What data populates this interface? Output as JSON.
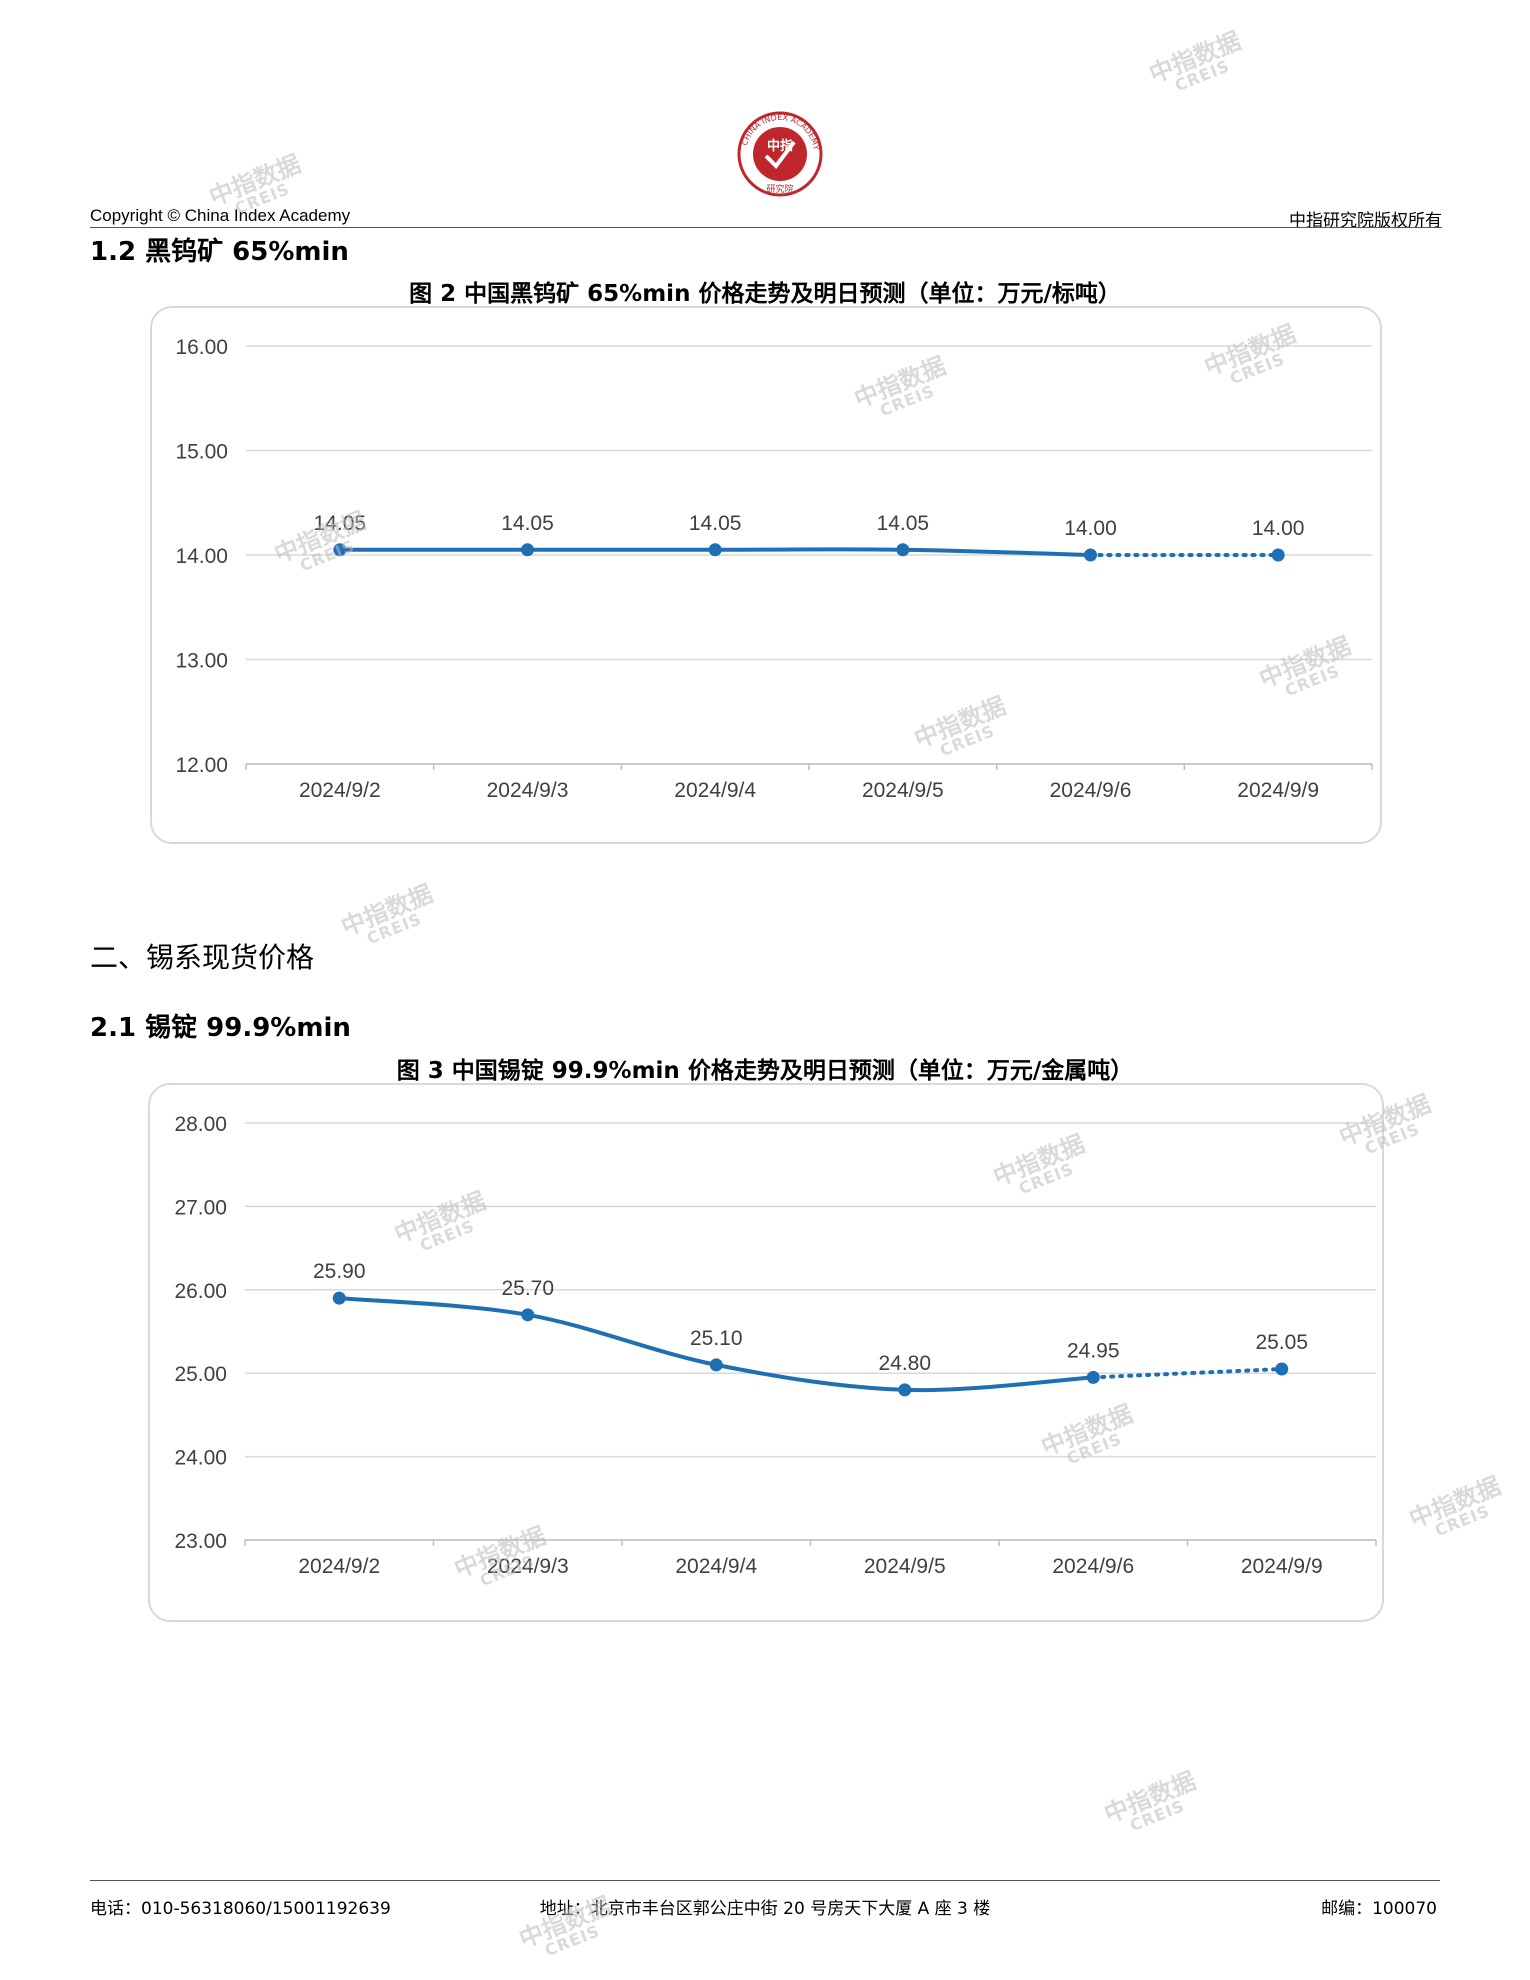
{
  "header": {
    "copyright": "Copyright © China Index Academy",
    "rights": "中指研究院版权所有",
    "logo": {
      "ring_text": "CHINA INDEX ACADEMY",
      "center_text": "中指",
      "bottom_text": "研究院",
      "color": "#c0272d"
    }
  },
  "section_1_2": {
    "heading": "1.2 黑钨矿 65%min"
  },
  "section_2": {
    "heading": "二、锡系现货价格"
  },
  "section_2_1": {
    "heading": "2.1 锡锭 99.9%min"
  },
  "chart1": {
    "title": "图 2 中国黑钨矿 65%min 价格走势及明日预测（单位：万元/标吨）"
  },
  "chart2": {
    "title": "图 3 中国锡锭 99.9%min 价格走势及明日预测（单位：万元/金属吨）"
  },
  "chart_data": [
    {
      "type": "line",
      "title": "图 2 中国黑钨矿 65%min 价格走势及明日预测（单位：万元/标吨）",
      "categories": [
        "2024/9/2",
        "2024/9/3",
        "2024/9/4",
        "2024/9/5",
        "2024/9/6",
        "2024/9/9"
      ],
      "values": [
        14.05,
        14.05,
        14.05,
        14.05,
        14.0,
        14.0
      ],
      "data_labels": [
        "14.05",
        "14.05",
        "14.05",
        "14.05",
        "14.00",
        "14.00"
      ],
      "forecast_from_index": 4,
      "ylim": [
        12,
        16
      ],
      "yticks": [
        "12.00",
        "13.00",
        "14.00",
        "15.00",
        "16.00"
      ],
      "grid": true,
      "legend": "none",
      "color": "#1f6fb4"
    },
    {
      "type": "line",
      "title": "图 3 中国锡锭 99.9%min 价格走势及明日预测（单位：万元/金属吨）",
      "categories": [
        "2024/9/2",
        "2024/9/3",
        "2024/9/4",
        "2024/9/5",
        "2024/9/6",
        "2024/9/9"
      ],
      "values": [
        25.9,
        25.7,
        25.1,
        24.8,
        24.95,
        25.05
      ],
      "data_labels": [
        "25.90",
        "25.70",
        "25.10",
        "24.80",
        "24.95",
        "25.05"
      ],
      "forecast_from_index": 4,
      "ylim": [
        23,
        28
      ],
      "yticks": [
        "23.00",
        "24.00",
        "25.00",
        "26.00",
        "27.00",
        "28.00"
      ],
      "grid": true,
      "legend": "none",
      "color": "#1f6fb4"
    }
  ],
  "footer": {
    "phone": "电话：010-56318060/15001192639",
    "address": "地址：北京市丰台区郭公庄中街 20 号房天下大厦 A 座 3 楼",
    "postcode": "邮编：100070"
  },
  "watermark": {
    "line1": "中指数据",
    "line2": "CREIS"
  }
}
